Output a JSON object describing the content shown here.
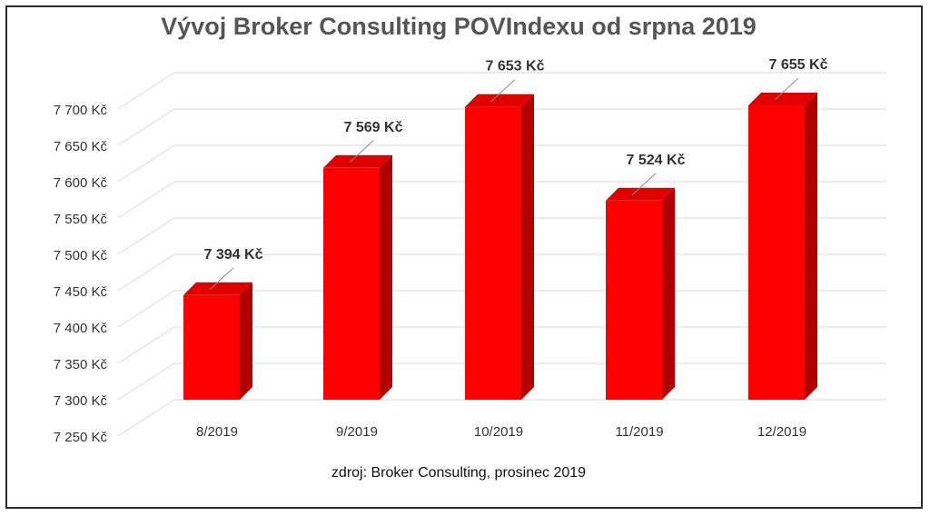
{
  "chart_data": {
    "type": "bar",
    "title": "Vývoj Broker Consulting POVIndexu od srpna 2019",
    "source_note": "zdroj: Broker Consulting, prosinec 2019",
    "categories": [
      "8/2019",
      "9/2019",
      "10/2019",
      "11/2019",
      "12/2019"
    ],
    "values": [
      7394,
      7569,
      7653,
      7524,
      7655
    ],
    "value_labels": [
      "7 394 Kč",
      "7 569 Kč",
      "7 653 Kč",
      "7 524 Kč",
      "7 655 Kč"
    ],
    "yticks": [
      7250,
      7300,
      7350,
      7400,
      7450,
      7500,
      7550,
      7600,
      7650,
      7700
    ],
    "ytick_labels": [
      "7 250 Kč",
      "7 300 Kč",
      "7 350 Kč",
      "7 400 Kč",
      "7 450 Kč",
      "7 500 Kč",
      "7 550 Kč",
      "7 600 Kč",
      "7 650 Kč",
      "7 700 Kč"
    ],
    "ylim": [
      7250,
      7700
    ],
    "grid": true,
    "legend": "none",
    "three_d": true,
    "colors": {
      "bar_front": "#ff0000",
      "bar_side": "#b00000",
      "bar_top": "#e00000",
      "grid": "#d9d9d9"
    }
  }
}
